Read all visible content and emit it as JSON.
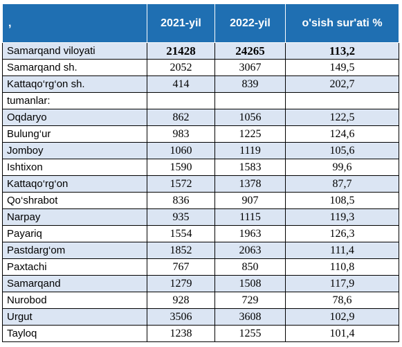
{
  "header": {
    "col1": ",",
    "col2": "2021-yil",
    "col3": "2022-yil",
    "col4": "o'sish sur'ati %"
  },
  "rows": [
    {
      "name": "Samarqand viloyati",
      "v2021": "21428",
      "v2022": "24265",
      "growth": "113,2",
      "shade": true,
      "bold": true
    },
    {
      "name": "Samarqand sh.",
      "v2021": "2052",
      "v2022": "3067",
      "growth": "149,5",
      "shade": false
    },
    {
      "name": "Kattaqo‘rg‘on sh.",
      "v2021": "414",
      "v2022": "839",
      "growth": "202,7",
      "shade": true
    },
    {
      "name": "tumanlar:",
      "v2021": "",
      "v2022": "",
      "growth": "",
      "shade": false
    },
    {
      "name": "Oqdaryo",
      "v2021": "862",
      "v2022": "1056",
      "growth": "122,5",
      "shade": true
    },
    {
      "name": "Bulung‘ur",
      "v2021": "983",
      "v2022": "1225",
      "growth": "124,6",
      "shade": false
    },
    {
      "name": "Jomboy",
      "v2021": "1060",
      "v2022": "1119",
      "growth": "105,6",
      "shade": true
    },
    {
      "name": "Ishtixon",
      "v2021": "1590",
      "v2022": "1583",
      "growth": "99,6",
      "shade": false
    },
    {
      "name": "Kattaqo‘rg‘on",
      "v2021": "1572",
      "v2022": "1378",
      "growth": "87,7",
      "shade": true
    },
    {
      "name": "Qo‘shrabot",
      "v2021": "836",
      "v2022": "907",
      "growth": "108,5",
      "shade": false
    },
    {
      "name": "Narpay",
      "v2021": "935",
      "v2022": "1115",
      "growth": "119,3",
      "shade": true
    },
    {
      "name": "Payariq",
      "v2021": "1554",
      "v2022": "1963",
      "growth": "126,3",
      "shade": false
    },
    {
      "name": "Pastdarg‘om",
      "v2021": "1852",
      "v2022": "2063",
      "growth": "111,4",
      "shade": true
    },
    {
      "name": "Paxtachi",
      "v2021": "767",
      "v2022": "850",
      "growth": "110,8",
      "shade": false
    },
    {
      "name": "Samarqand",
      "v2021": "1279",
      "v2022": "1508",
      "growth": "117,9",
      "shade": true
    },
    {
      "name": "Nurobod",
      "v2021": "928",
      "v2022": "729",
      "growth": "78,6",
      "shade": false
    },
    {
      "name": "Urgut",
      "v2021": "3506",
      "v2022": "3608",
      "growth": "102,9",
      "shade": true
    },
    {
      "name": "Tayloq",
      "v2021": "1238",
      "v2022": "1255",
      "growth": "101,4",
      "shade": false
    }
  ],
  "colors": {
    "header_bg": "#1f6fb2",
    "header_text": "#ffffff",
    "row_shade": "#dbe5f3"
  }
}
